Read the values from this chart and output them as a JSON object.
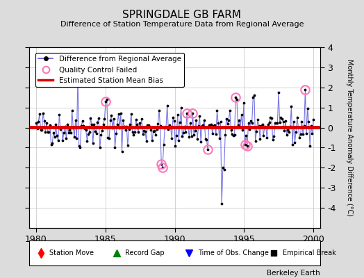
{
  "title": "SPRINGDALE GB FARM",
  "subtitle": "Difference of Station Temperature Data from Regional Average",
  "ylabel": "Monthly Temperature Anomaly Difference (°C)",
  "xlim": [
    1979.5,
    2000.5
  ],
  "ylim": [
    -5,
    4
  ],
  "yticks": [
    -4,
    -3,
    -2,
    -1,
    0,
    1,
    2,
    3,
    4
  ],
  "xticks": [
    1980,
    1985,
    1990,
    1995,
    2000
  ],
  "bias_level": 0.02,
  "background_color": "#dcdcdc",
  "plot_bg_color": "#ffffff",
  "line_color": "#5555dd",
  "bias_color": "#dd0000",
  "qc_color": "#ff77bb",
  "seed": 42,
  "n_points": 240,
  "start_year": 1980,
  "attribution": "Berkeley Earth",
  "title_fontsize": 11,
  "subtitle_fontsize": 8
}
